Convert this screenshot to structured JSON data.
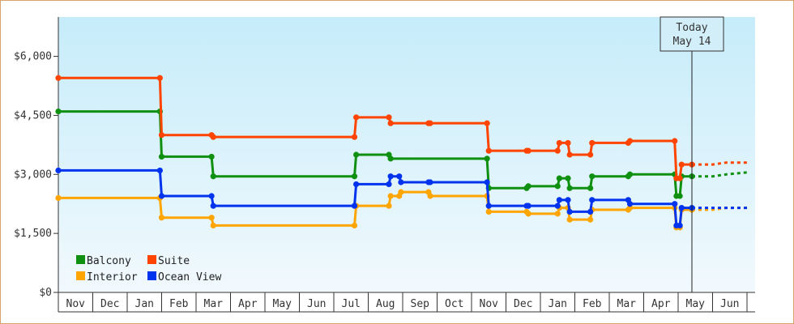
{
  "chart_data": {
    "type": "line",
    "step": true,
    "y_ticks": [
      "$0",
      "$1,500",
      "$3,000",
      "$4,500",
      "$6,000"
    ],
    "y_tick_values": [
      0,
      1500,
      3000,
      4500,
      6000
    ],
    "ylim": [
      0,
      7000
    ],
    "x_months": [
      "Nov",
      "Dec",
      "Jan",
      "Feb",
      "Mar",
      "Apr",
      "May",
      "Jun",
      "Jul",
      "Aug",
      "Sep",
      "Oct",
      "Nov",
      "Dec",
      "Jan",
      "Feb",
      "Mar",
      "Apr",
      "May",
      "Jun"
    ],
    "today_label_line1": "Today",
    "today_label_line2": "May 14",
    "today_month_index": 18.4,
    "projection_end_index": 20,
    "legend": {
      "placement": "bottom-left"
    },
    "series": [
      {
        "name": "Balcony",
        "color": "#109010",
        "points": [
          [
            0,
            4600
          ],
          [
            2.95,
            4600
          ],
          [
            3,
            3450
          ],
          [
            4.45,
            3450
          ],
          [
            4.5,
            2950
          ],
          [
            8.6,
            2950
          ],
          [
            8.65,
            3500
          ],
          [
            9.6,
            3500
          ],
          [
            9.65,
            3400
          ],
          [
            12.45,
            3400
          ],
          [
            12.5,
            2650
          ],
          [
            13.6,
            2650
          ],
          [
            13.65,
            2700
          ],
          [
            14.5,
            2700
          ],
          [
            14.55,
            2900
          ],
          [
            14.8,
            2900
          ],
          [
            14.85,
            2650
          ],
          [
            15.45,
            2650
          ],
          [
            15.5,
            2950
          ],
          [
            16.55,
            2950
          ],
          [
            16.6,
            3000
          ],
          [
            17.9,
            3000
          ],
          [
            17.95,
            2450
          ],
          [
            18.05,
            2450
          ],
          [
            18.1,
            2950
          ],
          [
            18.4,
            2950
          ]
        ],
        "projection": [
          [
            18.4,
            2950
          ],
          [
            19.0,
            2950
          ],
          [
            19.4,
            3000
          ],
          [
            20,
            3050
          ]
        ]
      },
      {
        "name": "Suite",
        "color": "#ff4400",
        "points": [
          [
            0,
            5450
          ],
          [
            2.95,
            5450
          ],
          [
            3,
            4000
          ],
          [
            4.45,
            4000
          ],
          [
            4.5,
            3950
          ],
          [
            8.6,
            3950
          ],
          [
            8.65,
            4450
          ],
          [
            9.6,
            4450
          ],
          [
            9.65,
            4300
          ],
          [
            10.75,
            4300
          ],
          [
            10.8,
            4300
          ],
          [
            12.45,
            4300
          ],
          [
            12.5,
            3600
          ],
          [
            13.6,
            3600
          ],
          [
            13.65,
            3600
          ],
          [
            14.5,
            3600
          ],
          [
            14.55,
            3800
          ],
          [
            14.8,
            3800
          ],
          [
            14.85,
            3500
          ],
          [
            15.45,
            3500
          ],
          [
            15.5,
            3800
          ],
          [
            16.55,
            3800
          ],
          [
            16.6,
            3850
          ],
          [
            17.9,
            3850
          ],
          [
            17.95,
            2900
          ],
          [
            18.05,
            2900
          ],
          [
            18.1,
            3250
          ],
          [
            18.4,
            3250
          ]
        ],
        "projection": [
          [
            18.4,
            3250
          ],
          [
            19.0,
            3250
          ],
          [
            19.4,
            3300
          ],
          [
            20,
            3300
          ]
        ]
      },
      {
        "name": "Interior",
        "color": "#ffa500",
        "points": [
          [
            0,
            2400
          ],
          [
            2.95,
            2400
          ],
          [
            3,
            1900
          ],
          [
            4.45,
            1900
          ],
          [
            4.5,
            1700
          ],
          [
            8.6,
            1700
          ],
          [
            8.65,
            2200
          ],
          [
            9.6,
            2200
          ],
          [
            9.65,
            2450
          ],
          [
            9.9,
            2450
          ],
          [
            9.95,
            2550
          ],
          [
            10.75,
            2550
          ],
          [
            10.8,
            2450
          ],
          [
            12.45,
            2450
          ],
          [
            12.5,
            2050
          ],
          [
            13.6,
            2050
          ],
          [
            13.65,
            2000
          ],
          [
            14.5,
            2000
          ],
          [
            14.55,
            2150
          ],
          [
            14.8,
            2150
          ],
          [
            14.85,
            1850
          ],
          [
            15.45,
            1850
          ],
          [
            15.5,
            2100
          ],
          [
            16.55,
            2100
          ],
          [
            16.6,
            2150
          ],
          [
            17.9,
            2150
          ],
          [
            17.95,
            1650
          ],
          [
            18.05,
            1650
          ],
          [
            18.1,
            2100
          ],
          [
            18.4,
            2100
          ]
        ],
        "projection": [
          [
            18.4,
            2100
          ],
          [
            19.0,
            2100
          ],
          [
            19.4,
            2150
          ],
          [
            20,
            2150
          ]
        ]
      },
      {
        "name": "Ocean View",
        "color": "#0033ee",
        "points": [
          [
            0,
            3100
          ],
          [
            2.95,
            3100
          ],
          [
            3,
            2450
          ],
          [
            4.45,
            2450
          ],
          [
            4.5,
            2200
          ],
          [
            8.6,
            2200
          ],
          [
            8.65,
            2750
          ],
          [
            9.6,
            2750
          ],
          [
            9.65,
            2950
          ],
          [
            9.9,
            2950
          ],
          [
            9.95,
            2800
          ],
          [
            10.75,
            2800
          ],
          [
            10.8,
            2800
          ],
          [
            12.45,
            2800
          ],
          [
            12.5,
            2200
          ],
          [
            13.6,
            2200
          ],
          [
            13.65,
            2200
          ],
          [
            14.5,
            2200
          ],
          [
            14.55,
            2350
          ],
          [
            14.8,
            2350
          ],
          [
            14.85,
            2050
          ],
          [
            15.45,
            2050
          ],
          [
            15.5,
            2350
          ],
          [
            16.55,
            2350
          ],
          [
            16.6,
            2250
          ],
          [
            17.9,
            2250
          ],
          [
            17.95,
            1700
          ],
          [
            18.05,
            1700
          ],
          [
            18.1,
            2150
          ],
          [
            18.4,
            2150
          ]
        ],
        "projection": [
          [
            18.4,
            2150
          ],
          [
            19.0,
            2150
          ],
          [
            19.4,
            2150
          ],
          [
            20,
            2150
          ]
        ]
      }
    ]
  }
}
